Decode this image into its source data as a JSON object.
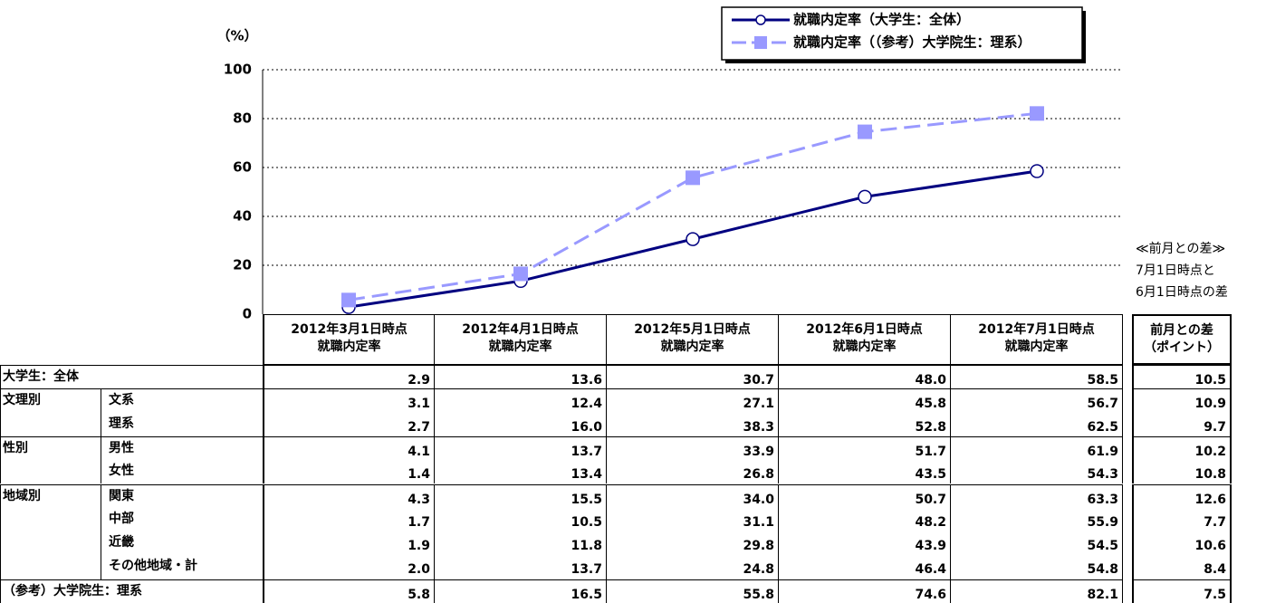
{
  "chart_data": {
    "type": "line",
    "y_unit_label": "（%）",
    "categories": [
      "2012年3月1日時点\n就職内定率",
      "2012年4月1日時点\n就職内定率",
      "2012年5月1日時点\n就職内定率",
      "2012年6月1日時点\n就職内定率",
      "2012年7月1日時点\n就職内定率"
    ],
    "series": [
      {
        "name": "就職内定率（大学生：全体）",
        "color": "#000080",
        "marker": "circle",
        "dashed": false,
        "values": [
          2.9,
          13.6,
          30.7,
          48.0,
          58.5
        ]
      },
      {
        "name": "就職内定率（（参考）大学院生：理系）",
        "color": "#9999ff",
        "marker": "square",
        "dashed": true,
        "values": [
          5.8,
          16.5,
          55.8,
          74.6,
          82.1
        ]
      }
    ],
    "ylim": [
      0,
      100
    ],
    "yticks": [
      0,
      20,
      40,
      60,
      80,
      100
    ],
    "grid": true,
    "legend": "top-right"
  },
  "note": [
    "≪前月との差≫",
    "7月1日時点と",
    "6月1日時点の差"
  ],
  "table": {
    "diff_header": "前月との差\n（ポイント）",
    "rows": [
      {
        "group": "大学生：全体",
        "cells": [
          "2.9",
          "13.6",
          "30.7",
          "48.0",
          "58.5"
        ],
        "diff": "10.5"
      },
      {
        "group": "文理別",
        "label": "文系",
        "cells": [
          "3.1",
          "12.4",
          "27.1",
          "45.8",
          "56.7"
        ],
        "diff": "10.9"
      },
      {
        "label": "理系",
        "cells": [
          "2.7",
          "16.0",
          "38.3",
          "52.8",
          "62.5"
        ],
        "diff": "9.7"
      },
      {
        "group": "性別",
        "label": "男性",
        "cells": [
          "4.1",
          "13.7",
          "33.9",
          "51.7",
          "61.9"
        ],
        "diff": "10.2"
      },
      {
        "label": "女性",
        "cells": [
          "1.4",
          "13.4",
          "26.8",
          "43.5",
          "54.3"
        ],
        "diff": "10.8"
      },
      {
        "group": "地域別",
        "label": "関東",
        "cells": [
          "4.3",
          "15.5",
          "34.0",
          "50.7",
          "63.3"
        ],
        "diff": "12.6"
      },
      {
        "label": "中部",
        "cells": [
          "1.7",
          "10.5",
          "31.1",
          "48.2",
          "55.9"
        ],
        "diff": "7.7"
      },
      {
        "label": "近畿",
        "cells": [
          "1.9",
          "11.8",
          "29.8",
          "43.9",
          "54.5"
        ],
        "diff": "10.6"
      },
      {
        "label": "その他地域・計",
        "cells": [
          "2.0",
          "13.7",
          "24.8",
          "46.4",
          "54.8"
        ],
        "diff": "8.4"
      },
      {
        "group": "（参考）大学院生：理系",
        "cells": [
          "5.8",
          "16.5",
          "55.8",
          "74.6",
          "82.1"
        ],
        "diff": "7.5"
      }
    ]
  }
}
